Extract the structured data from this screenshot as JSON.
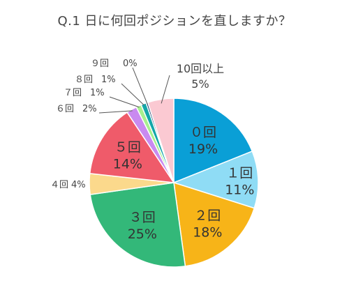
{
  "title": "Q.1 日に何回ポジションを直しますか？",
  "chart_data": {
    "type": "pie",
    "title": "Q.1 日に何回ポジションを直しますか？",
    "start_angle_deg": 0,
    "direction": "clockwise",
    "slices": [
      {
        "label": "０回",
        "percent_label": "19%",
        "value": 19,
        "color": "#0a9fd6"
      },
      {
        "label": "１回",
        "percent_label": "11%",
        "value": 11,
        "color": "#8fdcf5"
      },
      {
        "label": "２回",
        "percent_label": "18%",
        "value": 18,
        "color": "#f7b418"
      },
      {
        "label": "３回",
        "percent_label": "25%",
        "value": 25,
        "color": "#33b879"
      },
      {
        "label": "４回",
        "percent_label": "4%",
        "value": 4,
        "color": "#fbd98c"
      },
      {
        "label": "５回",
        "percent_label": "14%",
        "value": 14,
        "color": "#ef5b6a"
      },
      {
        "label": "６回",
        "percent_label": "2%",
        "value": 2,
        "color": "#c98af0"
      },
      {
        "label": "７回",
        "percent_label": "1%",
        "value": 1,
        "color": "#a7f08e"
      },
      {
        "label": "８回",
        "percent_label": "1%",
        "value": 1,
        "color": "#14a7a9"
      },
      {
        "label": "９回",
        "percent_label": "0%",
        "value": 0.35,
        "color": "#16386b"
      },
      {
        "label": "10回以上",
        "percent_label": "5%",
        "value": 5,
        "color": "#fbc9d2"
      }
    ]
  }
}
